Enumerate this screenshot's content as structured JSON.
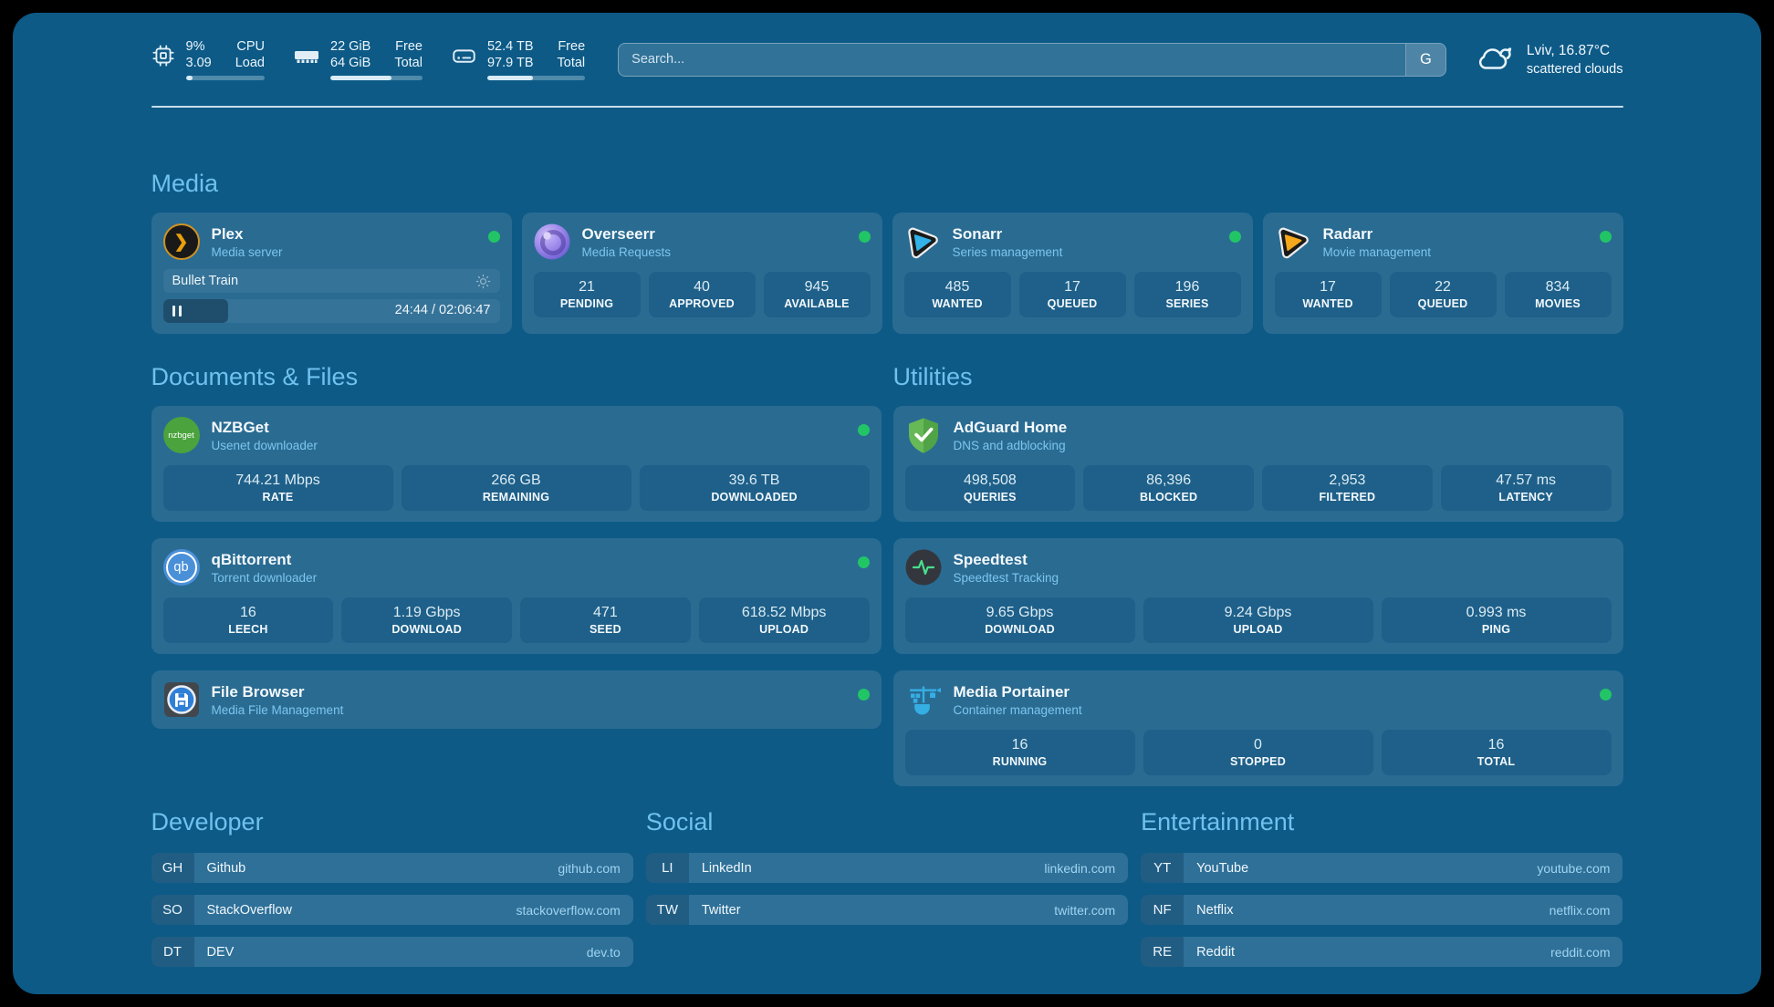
{
  "header": {
    "stats": [
      {
        "icon": "cpu-icon",
        "value1": "9%",
        "value2": "3.09",
        "label1": "CPU",
        "label2": "Load",
        "progress_pct": 9
      },
      {
        "icon": "ram-icon",
        "value1": "22 GiB",
        "value2": "64 GiB",
        "label1": "Free",
        "label2": "Total",
        "progress_pct": 66
      },
      {
        "icon": "disk-icon",
        "value1": "52.4 TB",
        "value2": "97.9 TB",
        "label1": "Free",
        "label2": "Total",
        "progress_pct": 47
      }
    ],
    "search": {
      "placeholder": "Search...",
      "button_label": "G"
    },
    "weather": {
      "icon": "cloud-icon",
      "location": "Lviv, 16.87°C",
      "condition": "scattered clouds"
    }
  },
  "sections": {
    "media": {
      "title": "Media",
      "cards": [
        {
          "icon": "plex-icon",
          "name": "Plex",
          "subtitle": "Media server",
          "online": true,
          "player": {
            "title": "Bullet Train",
            "time": "24:44 / 02:06:47",
            "progress_pct": 19.5,
            "state": "paused"
          }
        },
        {
          "icon": "overseerr-icon",
          "name": "Overseerr",
          "subtitle": "Media Requests",
          "online": true,
          "stats": [
            {
              "value": "21",
              "label": "PENDING"
            },
            {
              "value": "40",
              "label": "APPROVED"
            },
            {
              "value": "945",
              "label": "AVAILABLE"
            }
          ]
        },
        {
          "icon": "sonarr-icon",
          "name": "Sonarr",
          "subtitle": "Series management",
          "online": true,
          "stats": [
            {
              "value": "485",
              "label": "WANTED"
            },
            {
              "value": "17",
              "label": "QUEUED"
            },
            {
              "value": "196",
              "label": "SERIES"
            }
          ]
        },
        {
          "icon": "radarr-icon",
          "name": "Radarr",
          "subtitle": "Movie management",
          "online": true,
          "stats": [
            {
              "value": "17",
              "label": "WANTED"
            },
            {
              "value": "22",
              "label": "QUEUED"
            },
            {
              "value": "834",
              "label": "MOVIES"
            }
          ]
        }
      ]
    },
    "documents": {
      "title": "Documents & Files",
      "cards": [
        {
          "icon": "nzbget-icon",
          "name": "NZBGet",
          "subtitle": "Usenet downloader",
          "online": true,
          "stats": [
            {
              "value": "744.21 Mbps",
              "label": "RATE"
            },
            {
              "value": "266 GB",
              "label": "REMAINING"
            },
            {
              "value": "39.6 TB",
              "label": "DOWNLOADED"
            }
          ]
        },
        {
          "icon": "qbittorrent-icon",
          "name": "qBittorrent",
          "subtitle": "Torrent downloader",
          "online": true,
          "stats": [
            {
              "value": "16",
              "label": "LEECH"
            },
            {
              "value": "1.19 Gbps",
              "label": "DOWNLOAD"
            },
            {
              "value": "471",
              "label": "SEED"
            },
            {
              "value": "618.52 Mbps",
              "label": "UPLOAD"
            }
          ]
        },
        {
          "icon": "filebrowser-icon",
          "name": "File Browser",
          "subtitle": "Media File Management",
          "online": true
        }
      ]
    },
    "utilities": {
      "title": "Utilities",
      "cards": [
        {
          "icon": "adguard-icon",
          "name": "AdGuard Home",
          "subtitle": "DNS and adblocking",
          "online": false,
          "stats": [
            {
              "value": "498,508",
              "label": "QUERIES"
            },
            {
              "value": "86,396",
              "label": "BLOCKED"
            },
            {
              "value": "2,953",
              "label": "FILTERED"
            },
            {
              "value": "47.57 ms",
              "label": "LATENCY"
            }
          ]
        },
        {
          "icon": "speedtest-icon",
          "name": "Speedtest",
          "subtitle": "Speedtest Tracking",
          "online": false,
          "stats": [
            {
              "value": "9.65 Gbps",
              "label": "DOWNLOAD"
            },
            {
              "value": "9.24 Gbps",
              "label": "UPLOAD"
            },
            {
              "value": "0.993 ms",
              "label": "PING"
            }
          ]
        },
        {
          "icon": "portainer-icon",
          "name": "Media Portainer",
          "subtitle": "Container management",
          "online": true,
          "stats": [
            {
              "value": "16",
              "label": "RUNNING"
            },
            {
              "value": "0",
              "label": "STOPPED"
            },
            {
              "value": "16",
              "label": "TOTAL"
            }
          ]
        }
      ]
    },
    "developer": {
      "title": "Developer",
      "links": [
        {
          "abbr": "GH",
          "name": "Github",
          "domain": "github.com"
        },
        {
          "abbr": "SO",
          "name": "StackOverflow",
          "domain": "stackoverflow.com"
        },
        {
          "abbr": "DT",
          "name": "DEV",
          "domain": "dev.to"
        }
      ]
    },
    "social": {
      "title": "Social",
      "links": [
        {
          "abbr": "LI",
          "name": "LinkedIn",
          "domain": "linkedin.com"
        },
        {
          "abbr": "TW",
          "name": "Twitter",
          "domain": "twitter.com"
        }
      ]
    },
    "entertainment": {
      "title": "Entertainment",
      "links": [
        {
          "abbr": "YT",
          "name": "YouTube",
          "domain": "youtube.com"
        },
        {
          "abbr": "NF",
          "name": "Netflix",
          "domain": "netflix.com"
        },
        {
          "abbr": "RE",
          "name": "Reddit",
          "domain": "reddit.com"
        }
      ]
    }
  },
  "colors": {
    "page_background": "#000000",
    "panel_background": "#0d5a87",
    "card_background": "#2a6b92",
    "stat_box_background": "#1e6089",
    "section_heading": "#6fc2ed",
    "subtitle": "#7cc6ee",
    "status_online": "#21c565",
    "domain_text": "#9fd3f1",
    "plex_accent": "#e8a00d"
  }
}
